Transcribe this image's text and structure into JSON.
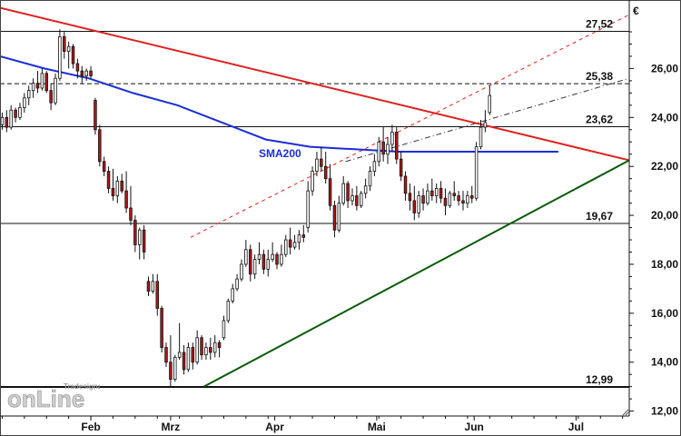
{
  "chart_data": {
    "type": "candlestick",
    "currency": "€",
    "y_ticks": [
      12,
      14,
      16,
      18,
      20,
      22,
      24,
      26
    ],
    "y_tick_labels": [
      "12,00",
      "14,00",
      "16,00",
      "18,00",
      "20,00",
      "22,00",
      "24,00",
      "26,00"
    ],
    "ylim": [
      11.8,
      28.8
    ],
    "x_tick_labels": [
      "Feb",
      "Mrz",
      "Apr",
      "Mai",
      "Jun",
      "Jul"
    ],
    "x_tick_positions": [
      20.5,
      38.5,
      62,
      85,
      107,
      130
    ],
    "xlim": [
      0,
      142
    ],
    "horizontal_levels": [
      {
        "value": 27.52,
        "label": "27,52",
        "style": "solid"
      },
      {
        "value": 25.38,
        "label": "25,38",
        "style": "dashed"
      },
      {
        "value": 23.62,
        "label": "23,62",
        "style": "solid"
      },
      {
        "value": 19.67,
        "label": "19,67",
        "style": "solid"
      },
      {
        "value": 12.99,
        "label": "12,99",
        "style": "solid-bold"
      }
    ],
    "trendlines": [
      {
        "name": "resistance",
        "color": "#e02020",
        "style": "solid",
        "points": [
          [
            0,
            28.48
          ],
          [
            142,
            22.25
          ]
        ]
      },
      {
        "name": "support",
        "color": "#0a5a0a",
        "style": "solid",
        "points": [
          [
            46,
            13.0
          ],
          [
            142,
            22.25
          ]
        ]
      },
      {
        "name": "channel-projection",
        "color": "#e02020",
        "style": "dashed",
        "points": [
          [
            43,
            19.1
          ],
          [
            142,
            28.2
          ]
        ]
      },
      {
        "name": "upper-channel",
        "color": "#333333",
        "style": "dashdot",
        "points": [
          [
            78,
            22.2
          ],
          [
            142,
            25.6
          ]
        ]
      }
    ],
    "sma200": {
      "label": "SMA200",
      "color": "#1a2ed6",
      "points": [
        [
          0,
          26.5
        ],
        [
          10,
          26.0
        ],
        [
          20,
          25.6
        ],
        [
          30,
          25.0
        ],
        [
          40,
          24.5
        ],
        [
          50,
          23.8
        ],
        [
          60,
          23.1
        ],
        [
          70,
          22.8
        ],
        [
          80,
          22.7
        ],
        [
          90,
          22.6
        ],
        [
          100,
          22.6
        ],
        [
          110,
          22.6
        ],
        [
          120,
          22.6
        ],
        [
          126,
          22.6
        ]
      ]
    },
    "candles": [
      [
        23.7,
        24.2,
        23.5,
        24.0
      ],
      [
        24.0,
        24.3,
        23.4,
        23.6
      ],
      [
        23.6,
        24.5,
        23.5,
        24.3
      ],
      [
        24.3,
        24.4,
        23.8,
        24.0
      ],
      [
        24.0,
        24.6,
        23.9,
        24.4
      ],
      [
        24.4,
        25.0,
        24.2,
        24.8
      ],
      [
        24.8,
        25.3,
        24.5,
        25.1
      ],
      [
        25.1,
        25.6,
        24.8,
        25.4
      ],
      [
        25.4,
        25.9,
        25.0,
        25.2
      ],
      [
        25.2,
        26.0,
        25.1,
        25.8
      ],
      [
        25.8,
        25.9,
        25.0,
        25.1
      ],
      [
        25.1,
        25.4,
        24.3,
        24.6
      ],
      [
        24.6,
        25.8,
        24.5,
        25.6
      ],
      [
        25.6,
        27.6,
        25.5,
        27.3
      ],
      [
        27.3,
        27.5,
        26.4,
        26.7
      ],
      [
        26.7,
        27.1,
        26.0,
        26.9
      ],
      [
        26.9,
        27.0,
        26.0,
        26.2
      ],
      [
        26.2,
        26.4,
        25.6,
        25.9
      ],
      [
        25.9,
        26.1,
        25.4,
        25.7
      ],
      [
        25.7,
        26.0,
        25.5,
        25.9
      ],
      [
        25.9,
        26.1,
        25.6,
        25.7
      ],
      [
        24.7,
        24.8,
        23.3,
        23.5
      ],
      [
        23.5,
        23.7,
        22.0,
        22.2
      ],
      [
        22.2,
        22.4,
        21.6,
        21.8
      ],
      [
        21.8,
        22.0,
        20.9,
        21.1
      ],
      [
        21.1,
        21.9,
        20.6,
        20.8
      ],
      [
        20.8,
        21.6,
        20.5,
        21.4
      ],
      [
        21.4,
        21.7,
        20.9,
        21.0
      ],
      [
        21.0,
        21.8,
        20.1,
        20.3
      ],
      [
        20.3,
        21.2,
        19.6,
        19.8
      ],
      [
        19.8,
        20.0,
        18.5,
        18.8
      ],
      [
        18.8,
        19.5,
        18.2,
        19.4
      ],
      [
        19.4,
        19.6,
        18.2,
        18.5
      ],
      [
        17.3,
        17.5,
        16.7,
        16.9
      ],
      [
        16.9,
        17.6,
        16.8,
        17.3
      ],
      [
        17.3,
        17.6,
        15.9,
        16.2
      ],
      [
        16.2,
        16.3,
        14.4,
        14.6
      ],
      [
        14.6,
        14.8,
        13.8,
        14.0
      ],
      [
        14.0,
        15.1,
        12.99,
        13.3
      ],
      [
        13.3,
        14.3,
        13.2,
        14.2
      ],
      [
        14.2,
        15.6,
        14.1,
        14.4
      ],
      [
        14.4,
        14.7,
        13.5,
        13.7
      ],
      [
        13.7,
        14.8,
        13.6,
        14.6
      ],
      [
        14.6,
        14.8,
        13.7,
        14.0
      ],
      [
        14.0,
        15.3,
        13.9,
        15.0
      ],
      [
        15.0,
        15.1,
        14.1,
        14.3
      ],
      [
        14.3,
        14.8,
        14.1,
        14.6
      ],
      [
        14.6,
        15.0,
        14.1,
        14.4
      ],
      [
        14.4,
        15.1,
        14.2,
        14.8
      ],
      [
        14.8,
        14.9,
        14.2,
        14.6
      ],
      [
        15.0,
        15.9,
        14.9,
        15.7
      ],
      [
        15.7,
        16.6,
        15.6,
        16.5
      ],
      [
        16.5,
        17.2,
        16.4,
        17.0
      ],
      [
        17.0,
        17.6,
        16.9,
        17.4
      ],
      [
        17.4,
        18.2,
        17.3,
        18.0
      ],
      [
        18.0,
        19.0,
        17.9,
        18.6
      ],
      [
        18.6,
        18.8,
        17.3,
        17.6
      ],
      [
        17.6,
        18.4,
        17.4,
        18.2
      ],
      [
        18.2,
        18.9,
        18.0,
        18.4
      ],
      [
        18.4,
        18.6,
        17.6,
        17.8
      ],
      [
        17.8,
        18.6,
        17.5,
        18.2
      ],
      [
        18.2,
        18.9,
        18.1,
        18.4
      ],
      [
        18.4,
        18.5,
        17.8,
        18.0
      ],
      [
        18.0,
        18.8,
        17.9,
        18.4
      ],
      [
        18.4,
        19.2,
        18.3,
        19.0
      ],
      [
        19.0,
        19.5,
        18.4,
        18.7
      ],
      [
        18.7,
        19.2,
        18.6,
        18.9
      ],
      [
        18.9,
        19.4,
        18.6,
        19.2
      ],
      [
        19.2,
        19.6,
        18.9,
        19.1
      ],
      [
        19.5,
        21.4,
        19.3,
        21.0
      ],
      [
        21.0,
        22.0,
        20.8,
        21.8
      ],
      [
        21.8,
        22.6,
        21.6,
        22.3
      ],
      [
        22.3,
        22.8,
        21.8,
        22.0
      ],
      [
        22.0,
        22.6,
        21.3,
        21.5
      ],
      [
        21.5,
        22.1,
        20.2,
        20.4
      ],
      [
        20.4,
        20.6,
        19.1,
        19.4
      ],
      [
        19.4,
        20.8,
        19.3,
        20.5
      ],
      [
        20.5,
        21.6,
        20.4,
        21.3
      ],
      [
        21.3,
        21.4,
        20.3,
        20.6
      ],
      [
        20.6,
        21.1,
        20.4,
        20.8
      ],
      [
        20.8,
        21.2,
        20.2,
        20.4
      ],
      [
        20.4,
        21.0,
        20.3,
        20.9
      ],
      [
        20.9,
        21.5,
        20.7,
        21.2
      ],
      [
        21.2,
        22.0,
        21.0,
        21.8
      ],
      [
        21.8,
        22.5,
        21.6,
        22.2
      ],
      [
        22.2,
        23.2,
        22.0,
        23.0
      ],
      [
        23.0,
        23.6,
        22.2,
        22.5
      ],
      [
        22.5,
        23.2,
        22.1,
        22.9
      ],
      [
        22.9,
        23.7,
        22.6,
        23.4
      ],
      [
        23.4,
        23.6,
        22.1,
        22.3
      ],
      [
        22.3,
        22.6,
        21.4,
        21.6
      ],
      [
        21.6,
        21.8,
        20.6,
        20.9
      ],
      [
        20.9,
        21.3,
        20.2,
        20.6
      ],
      [
        20.6,
        21.2,
        19.8,
        20.1
      ],
      [
        20.1,
        21.0,
        19.9,
        20.8
      ],
      [
        20.8,
        21.1,
        20.2,
        20.5
      ],
      [
        20.5,
        21.3,
        20.4,
        21.0
      ],
      [
        21.0,
        21.5,
        20.6,
        20.8
      ],
      [
        20.8,
        21.3,
        20.5,
        21.1
      ],
      [
        21.1,
        21.4,
        20.5,
        20.7
      ],
      [
        20.7,
        21.1,
        20.0,
        20.4
      ],
      [
        20.4,
        21.0,
        20.3,
        20.9
      ],
      [
        20.9,
        21.4,
        20.6,
        20.8
      ],
      [
        20.8,
        21.0,
        20.4,
        20.6
      ],
      [
        20.6,
        21.0,
        20.2,
        20.5
      ],
      [
        20.5,
        21.0,
        20.3,
        20.8
      ],
      [
        20.8,
        21.2,
        20.5,
        20.7
      ],
      [
        20.7,
        23.0,
        20.6,
        22.8
      ],
      [
        22.8,
        23.9,
        22.7,
        23.6
      ],
      [
        23.6,
        24.3,
        23.4,
        23.8
      ],
      [
        24.2,
        25.3,
        24.1,
        24.9
      ]
    ]
  },
  "annotations": {
    "sma_label": "SMA200"
  },
  "logo": {
    "sub": "Tradesignal®",
    "main": "onLine"
  }
}
